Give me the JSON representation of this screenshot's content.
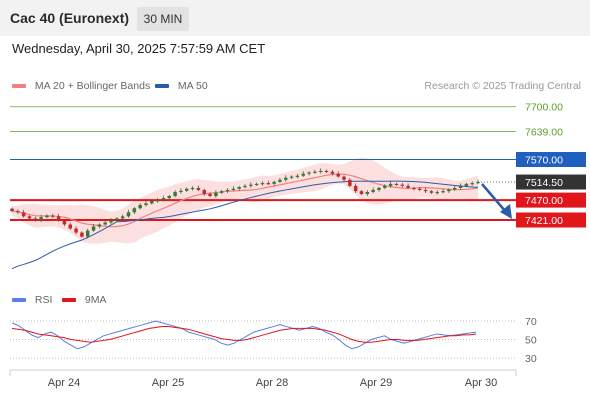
{
  "header": {
    "title": "Cac 40 (Euronext)",
    "timeframe": "30 MIN"
  },
  "datetime": "Wednesday, April 30, 2025 7:57:59 AM CET",
  "copyright": "Research © 2025 Trading Central",
  "colors": {
    "ma20_bollinger": "#f08080",
    "ma50": "#2a5caa",
    "resistance_green": "#5aa02c",
    "resistance_blue": "#1f5fbf",
    "support_red": "#e0161b",
    "current_price": "#333333",
    "candle_up": "#2e7d32",
    "candle_down": "#c62828",
    "rsi": "#5b7fde",
    "rsi_ma": "#e0161b",
    "arrow": "#2a5caa"
  },
  "chart_data": [
    {
      "type": "candlestick",
      "x_labels": [
        "Apr 24",
        "Apr 25",
        "Apr 28",
        "Apr 29",
        "Apr 30"
      ],
      "series": [
        {
          "name": "MA 20 + Bollinger Bands"
        },
        {
          "name": "MA 50"
        }
      ],
      "levels": [
        {
          "value": "7700.00",
          "type": "resistance"
        },
        {
          "value": "7639.00",
          "type": "resistance"
        },
        {
          "value": "7570.00",
          "type": "pivot"
        },
        {
          "value": "7514.50",
          "type": "last"
        },
        {
          "value": "7470.00",
          "type": "support"
        },
        {
          "value": "7421.00",
          "type": "support"
        }
      ],
      "close": [
        7443,
        7440,
        7430,
        7425,
        7420,
        7428,
        7432,
        7430,
        7420,
        7410,
        7400,
        7390,
        7380,
        7395,
        7405,
        7410,
        7415,
        7420,
        7425,
        7430,
        7440,
        7450,
        7458,
        7462,
        7468,
        7470,
        7475,
        7480,
        7490,
        7493,
        7498,
        7500,
        7495,
        7485,
        7480,
        7488,
        7492,
        7495,
        7498,
        7502,
        7505,
        7508,
        7510,
        7512,
        7510,
        7515,
        7520,
        7525,
        7528,
        7530,
        7535,
        7538,
        7540,
        7542,
        7540,
        7535,
        7528,
        7520,
        7505,
        7492,
        7485,
        7490,
        7495,
        7500,
        7505,
        7510,
        7508,
        7505,
        7500,
        7498,
        7495,
        7492,
        7488,
        7490,
        7492,
        7496,
        7500,
        7505,
        7510,
        7512,
        7514.5
      ],
      "rsi_axis": [
        30,
        50,
        70
      ],
      "rsi": [
        68,
        65,
        60,
        55,
        52,
        56,
        58,
        54,
        48,
        44,
        40,
        42,
        46,
        50,
        54,
        56,
        58,
        60,
        62,
        64,
        66,
        68,
        70,
        68,
        66,
        64,
        62,
        58,
        56,
        54,
        52,
        50,
        46,
        44,
        46,
        50,
        54,
        58,
        60,
        62,
        64,
        66,
        64,
        62,
        60,
        62,
        64,
        62,
        58,
        55,
        50,
        44,
        40,
        42,
        46,
        50,
        52,
        54,
        50,
        48,
        46,
        48,
        50,
        52,
        54,
        56,
        55,
        54,
        55,
        56,
        57,
        58
      ],
      "rsi_ma": [
        62,
        61,
        60,
        58,
        56,
        55,
        54,
        53,
        52,
        50,
        49,
        48,
        47,
        48,
        49,
        50,
        52,
        54,
        56,
        58,
        60,
        62,
        63,
        64,
        64,
        63,
        62,
        61,
        59,
        57,
        55,
        53,
        51,
        50,
        49,
        49,
        50,
        52,
        54,
        56,
        58,
        60,
        61,
        62,
        62,
        62,
        62,
        61,
        60,
        58,
        56,
        53,
        50,
        48,
        47,
        47,
        48,
        49,
        50,
        50,
        49,
        49,
        49,
        50,
        51,
        52,
        53,
        54,
        54,
        55,
        55,
        56
      ]
    }
  ],
  "legend_rsi": [
    {
      "name": "RSI",
      "color": "#5b7fde"
    },
    {
      "name": "9MA",
      "color": "#e0161b"
    }
  ]
}
